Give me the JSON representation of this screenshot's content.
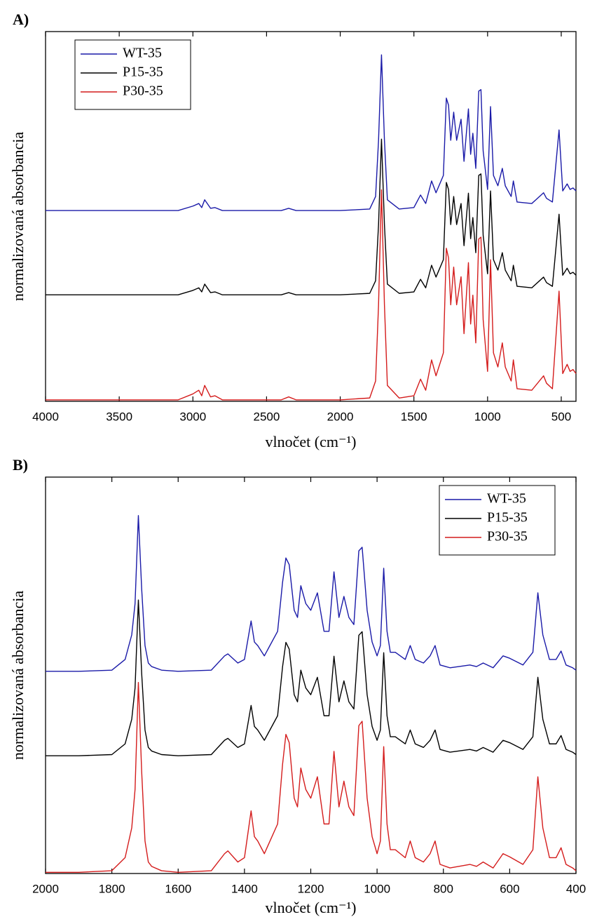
{
  "chart_data": [
    {
      "type": "line",
      "panel_label": "A)",
      "x_label": "vlnočet (cm⁻¹)",
      "y_label": "normalizovaná absorbancia",
      "xlim": [
        4000,
        400
      ],
      "xticks": [
        4000,
        3500,
        3000,
        2500,
        2000,
        1500,
        1000,
        500
      ],
      "ylim": [
        0,
        100
      ],
      "legend": "upper left",
      "x": [
        4000,
        3500,
        3100,
        3000,
        2960,
        2940,
        2920,
        2880,
        2850,
        2800,
        2400,
        2350,
        2300,
        2000,
        1800,
        1760,
        1740,
        1720,
        1700,
        1680,
        1600,
        1500,
        1455,
        1420,
        1380,
        1350,
        1300,
        1280,
        1265,
        1250,
        1230,
        1210,
        1180,
        1160,
        1130,
        1115,
        1100,
        1080,
        1060,
        1045,
        1030,
        1000,
        980,
        960,
        930,
        900,
        880,
        840,
        825,
        800,
        700,
        620,
        600,
        560,
        515,
        490,
        460,
        440,
        420,
        400
      ],
      "series": [
        {
          "name": "WT-35",
          "color": "#1a1aa8",
          "values": [
            51.6,
            51.6,
            51.6,
            52.8,
            53.5,
            52.4,
            54.5,
            52.2,
            52.4,
            51.6,
            51.6,
            52.2,
            51.6,
            51.6,
            52.0,
            55.4,
            70.6,
            93.7,
            70.6,
            54.5,
            52.0,
            52.4,
            55.8,
            53.5,
            59.6,
            56.4,
            61.1,
            82.0,
            80.1,
            70.6,
            78.2,
            70.6,
            76.3,
            64.9,
            79.1,
            66.8,
            72.5,
            63.0,
            83.9,
            84.3,
            67.7,
            57.3,
            79.7,
            61.1,
            58.3,
            63.0,
            58.3,
            55.4,
            59.6,
            53.9,
            53.5,
            56.4,
            54.9,
            53.9,
            73.4,
            56.9,
            58.8,
            57.3,
            57.7,
            56.9
          ]
        },
        {
          "name": "P15-35",
          "color": "#000000",
          "values": [
            28.8,
            28.8,
            28.8,
            30.0,
            30.7,
            29.6,
            31.7,
            29.4,
            29.6,
            28.8,
            28.8,
            29.4,
            28.8,
            28.8,
            29.2,
            32.6,
            47.8,
            70.9,
            47.8,
            31.7,
            29.2,
            29.6,
            33.0,
            30.7,
            36.8,
            33.6,
            38.3,
            59.2,
            57.3,
            47.8,
            55.4,
            47.8,
            53.5,
            42.1,
            56.3,
            44.0,
            49.7,
            40.2,
            61.1,
            61.5,
            44.9,
            34.5,
            56.9,
            38.3,
            35.5,
            40.2,
            35.5,
            32.6,
            36.8,
            31.1,
            30.7,
            33.6,
            32.1,
            31.1,
            50.6,
            34.1,
            36.0,
            34.5,
            34.9,
            34.1
          ]
        },
        {
          "name": "P30-35",
          "color": "#d41c1c",
          "values": [
            0.4,
            0.4,
            0.4,
            2.0,
            3.0,
            1.5,
            4.3,
            1.2,
            1.5,
            0.4,
            0.4,
            1.2,
            0.4,
            0.4,
            0.9,
            5.5,
            26.1,
            57.2,
            26.1,
            4.3,
            0.9,
            1.5,
            6.0,
            3.0,
            11.2,
            6.9,
            13.1,
            41.4,
            38.8,
            26.1,
            36.3,
            26.1,
            33.7,
            18.3,
            37.5,
            20.9,
            28.7,
            15.8,
            43.9,
            44.4,
            22.1,
            8.1,
            38.3,
            13.1,
            9.3,
            15.8,
            9.3,
            5.5,
            11.2,
            3.4,
            3.0,
            6.9,
            4.9,
            3.4,
            29.8,
            7.5,
            10.0,
            8.1,
            8.6,
            7.5
          ]
        }
      ]
    },
    {
      "type": "line",
      "panel_label": "B)",
      "x_label": "vlnočet (cm⁻¹)",
      "y_label": "normalizovaná absorbancia",
      "xlim": [
        2000,
        400
      ],
      "xticks": [
        2000,
        1800,
        1600,
        1400,
        1200,
        1000,
        800,
        600,
        400
      ],
      "ylim": [
        0,
        100
      ],
      "legend": "upper right",
      "x": [
        2000,
        1900,
        1800,
        1760,
        1740,
        1730,
        1720,
        1710,
        1700,
        1690,
        1680,
        1650,
        1600,
        1500,
        1460,
        1450,
        1420,
        1400,
        1380,
        1370,
        1360,
        1340,
        1300,
        1285,
        1275,
        1265,
        1250,
        1240,
        1230,
        1215,
        1200,
        1180,
        1160,
        1145,
        1130,
        1115,
        1100,
        1085,
        1070,
        1055,
        1045,
        1030,
        1015,
        1000,
        990,
        980,
        970,
        960,
        945,
        930,
        915,
        900,
        885,
        860,
        840,
        825,
        810,
        780,
        720,
        700,
        680,
        650,
        620,
        600,
        560,
        530,
        515,
        500,
        480,
        460,
        445,
        430,
        410,
        400
      ],
      "series": [
        {
          "name": "WT-35",
          "color": "#1a1aa8",
          "values": [
            51.0,
            51.0,
            51.3,
            54.0,
            60.2,
            68.1,
            90.3,
            71.7,
            57.5,
            53.1,
            52.2,
            51.3,
            51.0,
            51.3,
            54.9,
            55.4,
            53.1,
            54.0,
            63.7,
            58.4,
            57.5,
            54.9,
            61.1,
            73.5,
            79.6,
            77.9,
            66.4,
            64.6,
            72.6,
            68.1,
            66.4,
            70.8,
            61.1,
            61.1,
            76.1,
            64.6,
            69.9,
            64.6,
            62.8,
            81.4,
            82.3,
            66.4,
            58.4,
            54.9,
            57.5,
            77.0,
            61.1,
            55.8,
            55.8,
            54.9,
            54.0,
            57.5,
            54.0,
            53.1,
            54.9,
            57.5,
            52.6,
            51.9,
            52.6,
            52.2,
            53.1,
            51.9,
            54.9,
            54.3,
            52.6,
            55.8,
            70.8,
            60.2,
            54.0,
            54.0,
            56.1,
            52.6,
            51.9,
            51.3
          ]
        },
        {
          "name": "P15-35",
          "color": "#000000",
          "values": [
            29.7,
            29.7,
            30.0,
            32.7,
            38.9,
            46.8,
            69.0,
            50.4,
            36.2,
            31.8,
            30.9,
            30.0,
            29.7,
            30.0,
            33.6,
            34.1,
            31.8,
            32.7,
            42.4,
            37.1,
            36.2,
            33.6,
            39.8,
            52.2,
            58.3,
            56.6,
            45.1,
            43.3,
            51.3,
            46.8,
            45.1,
            49.5,
            39.8,
            39.8,
            54.8,
            43.3,
            48.6,
            43.3,
            41.5,
            60.1,
            61.0,
            45.1,
            37.1,
            33.6,
            36.2,
            55.7,
            39.8,
            34.5,
            34.5,
            33.6,
            32.7,
            36.2,
            32.7,
            31.8,
            33.6,
            36.2,
            31.3,
            30.6,
            31.3,
            30.9,
            31.8,
            30.6,
            33.6,
            33.0,
            31.3,
            34.5,
            49.5,
            38.9,
            32.7,
            32.7,
            34.8,
            31.3,
            30.6,
            30.0
          ]
        },
        {
          "name": "P30-35",
          "color": "#d41c1c",
          "values": [
            0.3,
            0.3,
            0.7,
            4.0,
            11.5,
            21.2,
            48.2,
            25.6,
            8.2,
            2.9,
            1.8,
            0.7,
            0.3,
            0.7,
            5.0,
            5.7,
            2.9,
            4.0,
            15.8,
            9.3,
            8.2,
            5.0,
            12.5,
            27.6,
            35.1,
            33.0,
            19.0,
            16.8,
            26.6,
            21.2,
            19.0,
            24.4,
            12.5,
            12.5,
            30.8,
            16.8,
            23.3,
            16.8,
            14.6,
            37.3,
            38.4,
            19.0,
            9.3,
            5.0,
            8.2,
            32.0,
            12.5,
            6.0,
            6.0,
            5.0,
            4.0,
            8.2,
            4.0,
            2.9,
            5.0,
            8.2,
            2.3,
            1.4,
            2.3,
            1.8,
            2.9,
            1.4,
            5.0,
            4.2,
            2.3,
            6.0,
            24.4,
            11.5,
            4.0,
            4.0,
            6.5,
            2.3,
            1.4,
            0.7
          ]
        }
      ]
    }
  ]
}
